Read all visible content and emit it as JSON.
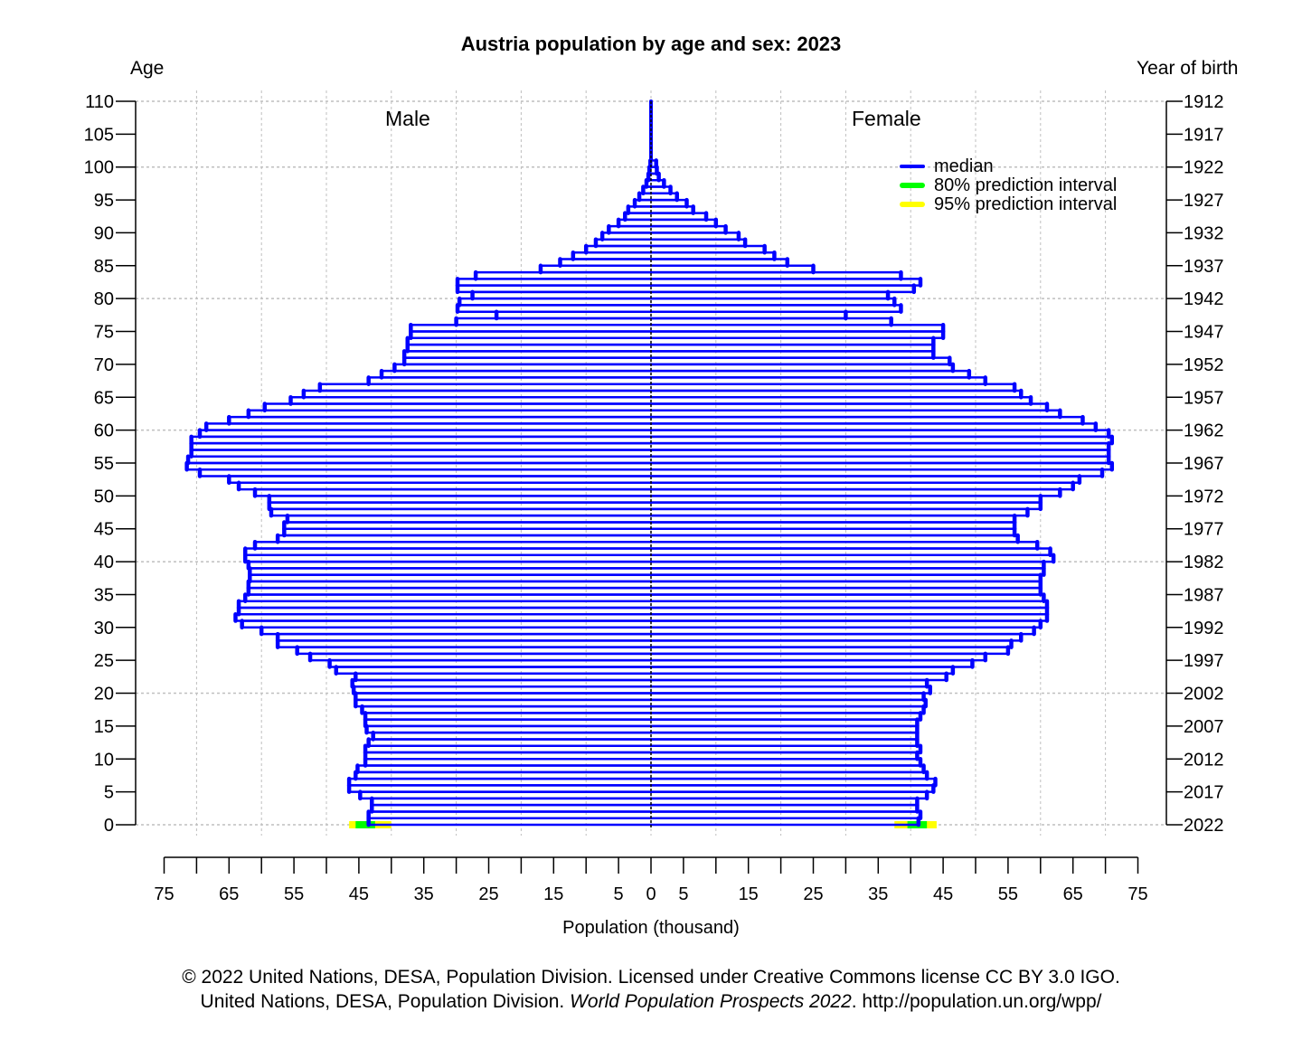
{
  "chart_data": {
    "type": "bar",
    "subtype": "population-pyramid",
    "title": "Austria population by age and sex: 2023",
    "xlabel": "Population (thousand)",
    "ylabel_left": "Age",
    "ylabel_right": "Year of birth",
    "panel_labels": {
      "left": "Male",
      "right": "Female"
    },
    "xlim": [
      -75,
      75
    ],
    "ylim": [
      0,
      110
    ],
    "x_ticks": [
      75,
      65,
      55,
      45,
      35,
      25,
      15,
      5,
      0,
      5,
      15,
      25,
      35,
      45,
      55,
      65,
      75
    ],
    "y_ticks_age": [
      0,
      5,
      10,
      15,
      20,
      25,
      30,
      35,
      40,
      45,
      50,
      55,
      60,
      65,
      70,
      75,
      80,
      85,
      90,
      95,
      100,
      105,
      110
    ],
    "y_ticks_year_of_birth": [
      2022,
      2017,
      2012,
      2007,
      2002,
      1997,
      1992,
      1987,
      1982,
      1977,
      1972,
      1967,
      1962,
      1957,
      1952,
      1947,
      1942,
      1937,
      1932,
      1927,
      1922,
      1917,
      1912
    ],
    "grid": true,
    "legend": [
      {
        "label": "median",
        "color": "#0000ff"
      },
      {
        "label": "80% prediction interval",
        "color": "#00ff00"
      },
      {
        "label": "95% prediction interval",
        "color": "#ffff00"
      }
    ],
    "legend_position": "upper right",
    "ages": [
      0,
      1,
      2,
      3,
      4,
      5,
      6,
      7,
      8,
      9,
      10,
      11,
      12,
      13,
      14,
      15,
      16,
      17,
      18,
      19,
      20,
      21,
      22,
      23,
      24,
      25,
      26,
      27,
      28,
      29,
      30,
      31,
      32,
      33,
      34,
      35,
      36,
      37,
      38,
      39,
      40,
      41,
      42,
      43,
      44,
      45,
      46,
      47,
      48,
      49,
      50,
      51,
      52,
      53,
      54,
      55,
      56,
      57,
      58,
      59,
      60,
      61,
      62,
      63,
      64,
      65,
      66,
      67,
      68,
      69,
      70,
      71,
      72,
      73,
      74,
      75,
      76,
      77,
      78,
      79,
      80,
      81,
      82,
      83,
      84,
      85,
      86,
      87,
      88,
      89,
      90,
      91,
      92,
      93,
      94,
      95,
      96,
      97,
      98,
      99,
      100
    ],
    "series": [
      {
        "name": "Male",
        "values": [
          43.5,
          43.5,
          43,
          43,
          44.8,
          46.5,
          46.5,
          45.5,
          45.2,
          44,
          44,
          44,
          43.5,
          42.8,
          43.8,
          44,
          44,
          44.5,
          45.5,
          45.5,
          45.8,
          46,
          45.5,
          48.5,
          49.5,
          52.5,
          54.5,
          57.5,
          57.5,
          60,
          63,
          64,
          63.5,
          63.5,
          62.5,
          62,
          62,
          61.8,
          61.8,
          62,
          62.5,
          62.5,
          61,
          57.5,
          56.5,
          56.5,
          56,
          58.5,
          58.8,
          58.8,
          61,
          63.5,
          65,
          69.5,
          71.5,
          71.3,
          70.8,
          70.8,
          70.8,
          69.5,
          68.5,
          65,
          62,
          59.5,
          55.5,
          53.5,
          51,
          43.5,
          41.5,
          39.5,
          38,
          38,
          37.5,
          37.5,
          37,
          37,
          30,
          23.8,
          29.8,
          29.5,
          27.5,
          29.8,
          29.8,
          27,
          17,
          14,
          12,
          10,
          8.5,
          7.5,
          6.5,
          5,
          4,
          3.5,
          2.5,
          1.8,
          1.2,
          0.7,
          0.4,
          0.25,
          0.1
        ]
      },
      {
        "name": "Female",
        "values": [
          41.2,
          41.5,
          41,
          41,
          42.5,
          43.5,
          43.8,
          42.5,
          42,
          41.5,
          41,
          41.5,
          41,
          41,
          41,
          41,
          41.5,
          42,
          42.3,
          42,
          43,
          42.5,
          45.5,
          46.5,
          49.5,
          51.5,
          55,
          55.5,
          57,
          59,
          60,
          61,
          61,
          61,
          60.5,
          60,
          60,
          60,
          60.5,
          60.5,
          62,
          61.5,
          59.5,
          56.5,
          56,
          56,
          56,
          58,
          60,
          60,
          63,
          65,
          66,
          69.5,
          71,
          70.5,
          70.5,
          70.5,
          71,
          70.5,
          68.5,
          66.5,
          63,
          61,
          58.5,
          57,
          56,
          51.5,
          49,
          46.5,
          46,
          43.5,
          43.5,
          43.5,
          45,
          45,
          37,
          30,
          38.5,
          37.5,
          36.5,
          40.5,
          41.5,
          38.5,
          25,
          21,
          19,
          17.5,
          14.5,
          13.5,
          11.5,
          10,
          8.5,
          6.5,
          5.5,
          4,
          3,
          2,
          1.2,
          0.9,
          0.8
        ]
      }
    ],
    "prediction_interval_age0": {
      "male_80": [
        42.5,
        45.5
      ],
      "male_95": [
        40,
        46.5
      ],
      "female_80": [
        39.5,
        42.5
      ],
      "female_95": [
        37.5,
        44
      ]
    }
  },
  "title": "Austria population by age and sex: 2023",
  "labels": {
    "age": "Age",
    "year_of_birth": "Year of birth",
    "male": "Male",
    "female": "Female",
    "xlabel": "Population (thousand)"
  },
  "legend": {
    "median": "median",
    "pi80": "80% prediction interval",
    "pi95": "95% prediction interval"
  },
  "colors": {
    "median": "#0000ff",
    "pi80": "#00ff00",
    "pi95": "#ffff00",
    "grid": "#bfbfbf"
  },
  "footer": {
    "line1": "© 2022 United Nations, DESA, Population Division. Licensed under Creative Commons license CC BY 3.0 IGO.",
    "line2_prefix": "United Nations, DESA, Population Division. ",
    "line2_italic": "World Population Prospects 2022",
    "line2_suffix": ". http://population.un.org/wpp/"
  }
}
